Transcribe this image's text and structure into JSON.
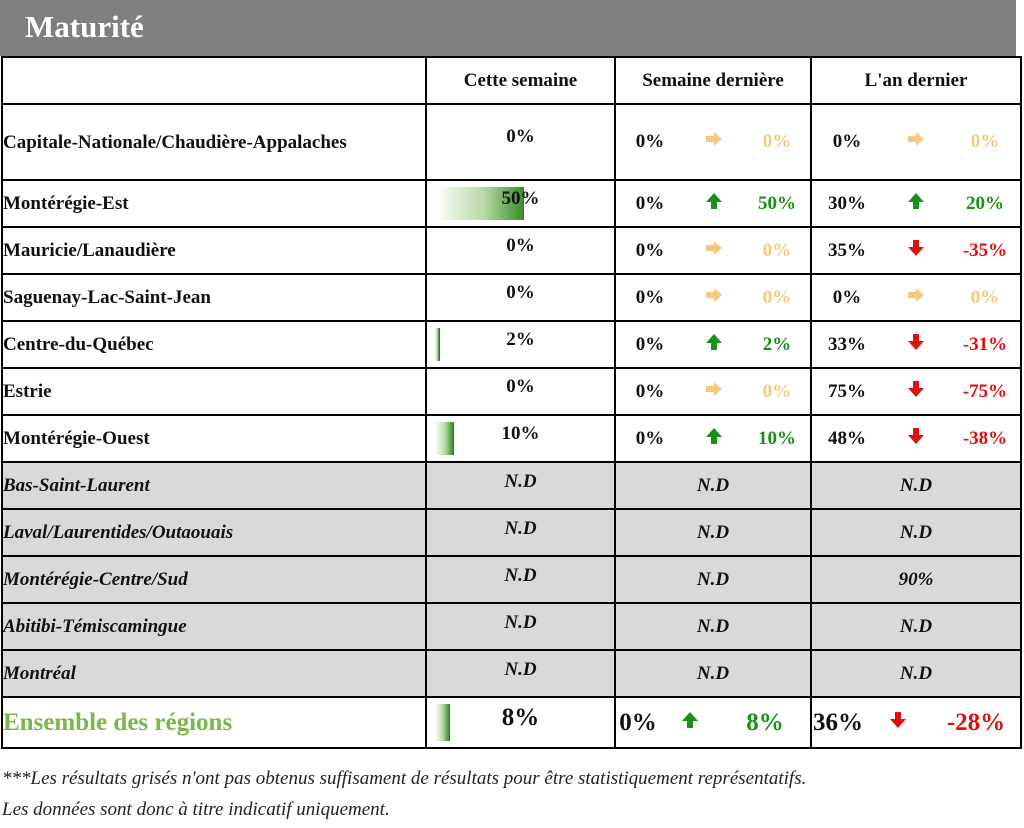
{
  "title": "Maturité",
  "columns": [
    "Cette semaine",
    "Semaine dernière",
    "L'an dernier"
  ],
  "rows": [
    {
      "region": "Capitale-Nationale/Chaudière-Appalaches",
      "this_week": "0%",
      "bar": 0,
      "last_week": "0%",
      "lw_trend": "flat",
      "lw_diff": "0%",
      "last_year": "0%",
      "ly_trend": "flat",
      "ly_diff": "0%"
    },
    {
      "region": "Montérégie-Est",
      "this_week": "50%",
      "bar": 0.5,
      "last_week": "0%",
      "lw_trend": "up",
      "lw_diff": "50%",
      "last_year": "30%",
      "ly_trend": "up",
      "ly_diff": "20%"
    },
    {
      "region": "Mauricie/Lanaudière",
      "this_week": "0%",
      "bar": 0,
      "last_week": "0%",
      "lw_trend": "flat",
      "lw_diff": "0%",
      "last_year": "35%",
      "ly_trend": "down",
      "ly_diff": "-35%"
    },
    {
      "region": "Saguenay-Lac-Saint-Jean",
      "this_week": "0%",
      "bar": 0,
      "last_week": "0%",
      "lw_trend": "flat",
      "lw_diff": "0%",
      "last_year": "0%",
      "ly_trend": "flat",
      "ly_diff": "0%"
    },
    {
      "region": "Centre-du-Québec",
      "this_week": "2%",
      "bar": 0.02,
      "last_week": "0%",
      "lw_trend": "up",
      "lw_diff": "2%",
      "last_year": "33%",
      "ly_trend": "down",
      "ly_diff": "-31%"
    },
    {
      "region": "Estrie",
      "this_week": "0%",
      "bar": 0,
      "last_week": "0%",
      "lw_trend": "flat",
      "lw_diff": "0%",
      "last_year": "75%",
      "ly_trend": "down",
      "ly_diff": "-75%"
    },
    {
      "region": "Montérégie-Ouest",
      "this_week": "10%",
      "bar": 0.1,
      "last_week": "0%",
      "lw_trend": "up",
      "lw_diff": "10%",
      "last_year": "48%",
      "ly_trend": "down",
      "ly_diff": "-38%"
    }
  ],
  "gray_rows": [
    {
      "region": "Bas-Saint-Laurent",
      "this_week": "N.D",
      "last_week": "N.D",
      "last_year": "N.D"
    },
    {
      "region": "Laval/Laurentides/Outaouais",
      "this_week": "N.D",
      "last_week": "N.D",
      "last_year": "N.D"
    },
    {
      "region": "Montérégie-Centre/Sud",
      "this_week": "N.D",
      "last_week": "N.D",
      "last_year": "90%"
    },
    {
      "region": "Abitibi-Témiscamingue",
      "this_week": "N.D",
      "last_week": "N.D",
      "last_year": "N.D"
    },
    {
      "region": "Montréal",
      "this_week": "N.D",
      "last_week": "N.D",
      "last_year": "N.D"
    }
  ],
  "total": {
    "region": "Ensemble des régions",
    "this_week": "8%",
    "bar": 0.08,
    "last_week": "0%",
    "lw_trend": "up",
    "lw_diff": "8%",
    "last_year": "36%",
    "ly_trend": "down",
    "ly_diff": "-28%"
  },
  "footnote": {
    "line1": "***Les résultats grisés n'ont pas obtenus suffisament de résultats pour être statistiquement représentatifs.",
    "line2": "Les données sont donc à titre indicatif uniquement."
  },
  "icons": {
    "up": "arrow-up-icon",
    "down": "arrow-down-icon",
    "flat": "arrow-right-icon"
  },
  "colors": {
    "header_bg": "#7f7f7f",
    "gray_row": "#d9d9d9",
    "up": "#1a8f1a",
    "down": "#e01010",
    "flat": "#f2c97f",
    "total_label": "#7ab648"
  }
}
